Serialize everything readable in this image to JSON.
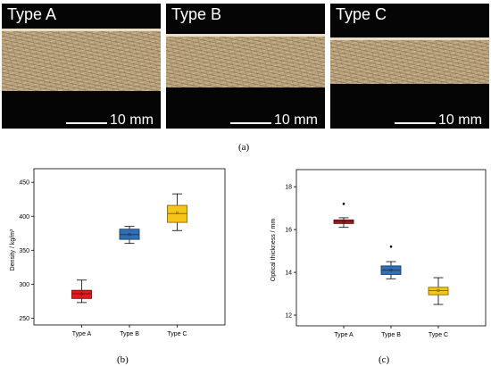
{
  "photos": [
    {
      "label": "Type A",
      "scale": "10 mm"
    },
    {
      "label": "Type B",
      "scale": "10 mm"
    },
    {
      "label": "Type C",
      "scale": "10 mm"
    }
  ],
  "captions": {
    "a": "(a)",
    "b": "(b)",
    "c": "(c)"
  },
  "chart_data": [
    {
      "type": "box",
      "panel": "(b)",
      "title": "",
      "xlabel": "",
      "ylabel": "Density  /  kg/m³",
      "categories": [
        "Type A",
        "Type B",
        "Type C"
      ],
      "ylim": [
        240,
        470
      ],
      "yticks": [
        250,
        300,
        350,
        400,
        450
      ],
      "grid": false,
      "series": [
        {
          "name": "Type A",
          "color": "#e31a1c",
          "whisker_low": 273,
          "q1": 279,
          "median": 286,
          "q3": 291,
          "whisker_high": 306,
          "mean": 286,
          "outliers": []
        },
        {
          "name": "Type B",
          "color": "#2f6fb5",
          "whisker_low": 360,
          "q1": 366,
          "median": 373,
          "q3": 381,
          "whisker_high": 385,
          "mean": 373,
          "outliers": []
        },
        {
          "name": "Type C",
          "color": "#f5c518",
          "whisker_low": 379,
          "q1": 391,
          "median": 404,
          "q3": 416,
          "whisker_high": 433,
          "mean": 405,
          "outliers": []
        }
      ]
    },
    {
      "type": "box",
      "panel": "(c)",
      "title": "",
      "xlabel": "",
      "ylabel": "Optical thickness  /  mm",
      "categories": [
        "Type A",
        "Type B",
        "Type C"
      ],
      "ylim": [
        11.5,
        18.8
      ],
      "yticks": [
        12,
        14,
        16,
        18
      ],
      "grid": false,
      "series": [
        {
          "name": "Type A",
          "color": "#b01e1e",
          "whisker_low": 16.1,
          "q1": 16.28,
          "median": 16.38,
          "q3": 16.45,
          "whisker_high": 16.55,
          "mean": 16.37,
          "outliers": [
            17.2
          ]
        },
        {
          "name": "Type B",
          "color": "#2f6fb5",
          "whisker_low": 13.7,
          "q1": 13.9,
          "median": 14.1,
          "q3": 14.3,
          "whisker_high": 14.5,
          "mean": 14.1,
          "outliers": [
            15.2
          ]
        },
        {
          "name": "Type C",
          "color": "#f5c518",
          "whisker_low": 12.5,
          "q1": 12.95,
          "median": 13.15,
          "q3": 13.3,
          "whisker_high": 13.75,
          "mean": 13.15,
          "outliers": []
        }
      ]
    }
  ]
}
